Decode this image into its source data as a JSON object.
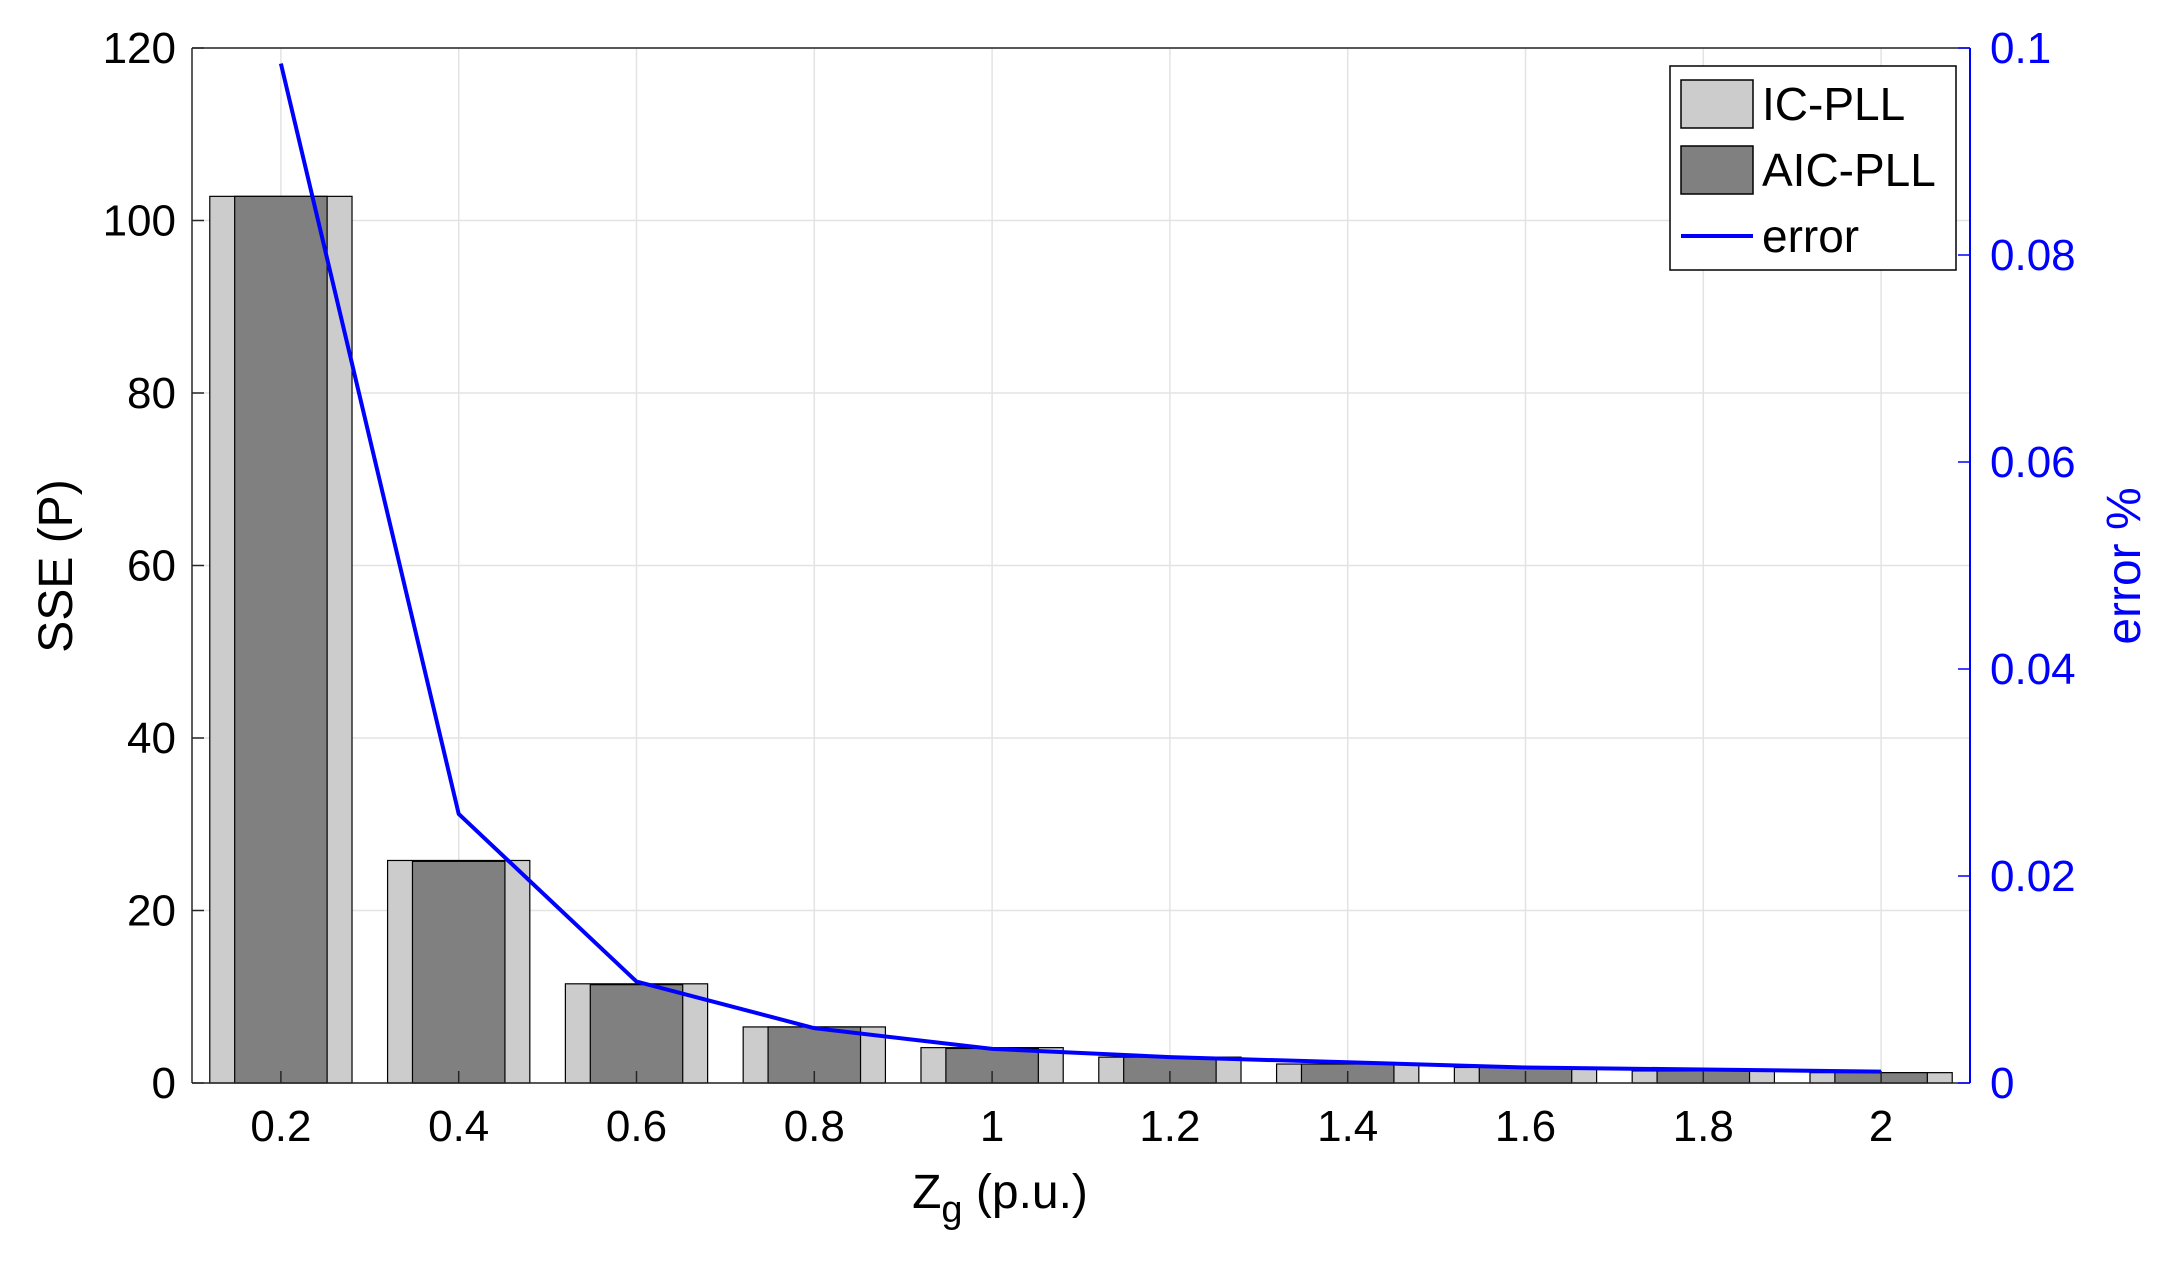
{
  "chart_data": {
    "type": "bar",
    "categories": [
      "0.2",
      "0.4",
      "0.6",
      "0.8",
      "1",
      "1.2",
      "1.4",
      "1.6",
      "1.8",
      "2"
    ],
    "x": [
      0.2,
      0.4,
      0.6,
      0.8,
      1.0,
      1.2,
      1.4,
      1.6,
      1.8,
      2.0
    ],
    "series": [
      {
        "name": "IC-PLL",
        "kind": "bar",
        "axis": "left",
        "color": "#cccccc",
        "values": [
          102.8,
          25.8,
          11.5,
          6.5,
          4.1,
          3.0,
          2.2,
          1.8,
          1.4,
          1.2
        ]
      },
      {
        "name": "AIC-PLL",
        "kind": "bar",
        "axis": "left",
        "color": "#808080",
        "values": [
          102.8,
          25.7,
          11.4,
          6.5,
          4.0,
          3.0,
          2.2,
          1.8,
          1.4,
          1.2
        ]
      },
      {
        "name": "error",
        "kind": "line",
        "axis": "right",
        "color": "#0000ff",
        "values": [
          0.0985,
          0.026,
          0.0098,
          0.0053,
          0.0033,
          0.0025,
          0.002,
          0.0015,
          0.0013,
          0.0011
        ]
      }
    ],
    "xlabel_main": "Z",
    "xlabel_sub": "g",
    "xlabel_rest": " (p.u.)",
    "ylabel": "SSE (P)",
    "ylabel_right": "error %",
    "xlim": [
      0.1,
      2.1
    ],
    "ylim": [
      0,
      120
    ],
    "ylim_right": [
      0,
      0.1
    ],
    "xticks": [
      "0.2",
      "0.4",
      "0.6",
      "0.8",
      "1",
      "1.2",
      "1.4",
      "1.6",
      "1.8",
      "2"
    ],
    "yticks": [
      "0",
      "20",
      "40",
      "60",
      "80",
      "100",
      "120"
    ],
    "yticks_right": [
      "0",
      "0.02",
      "0.04",
      "0.06",
      "0.08",
      "0.1"
    ],
    "grid": true,
    "legend_position": "top-right",
    "legend": [
      "IC-PLL",
      "AIC-PLL",
      "error"
    ]
  }
}
